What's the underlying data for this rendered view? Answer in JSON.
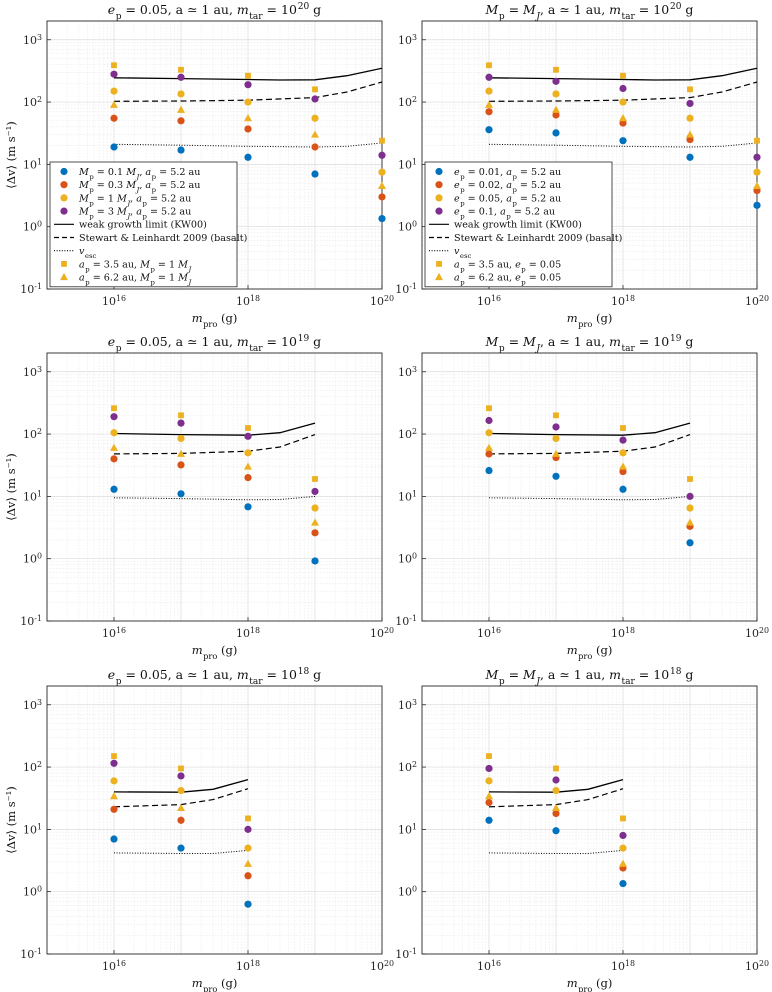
{
  "figure": {
    "xlabel": "m_pro (g)",
    "ylabel": "⟨Δv⟩ (m s⁻¹)",
    "xlim": [
      1000000000000000.0,
      1e+20
    ],
    "ylim": [
      0.1,
      2000
    ],
    "xticks": [
      {
        "v": 1e+16,
        "b": "10",
        "e": "16"
      },
      {
        "v": 1e+18,
        "b": "10",
        "e": "18"
      },
      {
        "v": 1e+20,
        "b": "10",
        "e": "20"
      }
    ],
    "yticks": [
      {
        "v": 0.1,
        "b": "10",
        "e": "-1"
      },
      {
        "v": 1,
        "b": "10",
        "e": "0"
      },
      {
        "v": 10,
        "b": "10",
        "e": "1"
      },
      {
        "v": 100,
        "b": "10",
        "e": "2"
      },
      {
        "v": 1000,
        "b": "10",
        "e": "3"
      }
    ]
  },
  "colors": {
    "blue": "#0072BD",
    "red": "#D95319",
    "yellow": "#EDB120",
    "purple": "#7E2F8E",
    "line": "#000000"
  },
  "legends": {
    "left": [
      {
        "marker": "circle",
        "color": "blue",
        "text": "M_p = 0.1 M_J, a_p = 5.2 au"
      },
      {
        "marker": "circle",
        "color": "red",
        "text": "M_p = 0.3 M_J, a_p = 5.2 au"
      },
      {
        "marker": "circle",
        "color": "yellow",
        "text": "M_p = 1 M_J, a_p = 5.2 au"
      },
      {
        "marker": "circle",
        "color": "purple",
        "text": "M_p = 3 M_J, a_p = 5.2 au"
      },
      {
        "marker": "solid",
        "text": "weak growth limit (KW00)"
      },
      {
        "marker": "dashed",
        "text": "Stewart & Leinhardt 2009 (basalt)"
      },
      {
        "marker": "dotted",
        "text": "v_esc"
      },
      {
        "marker": "square",
        "color": "yellow",
        "text": "a_p = 3.5 au, M_p = 1 M_J"
      },
      {
        "marker": "triangle",
        "color": "yellow",
        "text": "a_p = 6.2 au, M_p = 1 M_J"
      }
    ],
    "right": [
      {
        "marker": "circle",
        "color": "blue",
        "text": "e_p = 0.01, a_p = 5.2 au"
      },
      {
        "marker": "circle",
        "color": "red",
        "text": "e_p = 0.02, a_p = 5.2 au"
      },
      {
        "marker": "circle",
        "color": "yellow",
        "text": "e_p = 0.05, a_p = 5.2 au"
      },
      {
        "marker": "circle",
        "color": "purple",
        "text": "e_p = 0.1, a_p = 5.2 au"
      },
      {
        "marker": "solid",
        "text": "weak growth limit (KW00)"
      },
      {
        "marker": "dashed",
        "text": "Stewart & Leinhardt 2009 (basalt)"
      },
      {
        "marker": "dotted",
        "text": "v_esc"
      },
      {
        "marker": "square",
        "color": "yellow",
        "text": "a_p = 3.5 au, e_p = 0.05"
      },
      {
        "marker": "triangle",
        "color": "yellow",
        "text": "a_p = 6.2 au, e_p = 0.05"
      }
    ]
  },
  "chart_data": [
    {
      "type": "scatter",
      "title": "e_p = 0.05, a ≃ 1 au, m_tar = 10^20 g",
      "x": [
        1e+16,
        1e+17,
        1e+18,
        1e+19,
        1e+20
      ],
      "series": [
        {
          "name": "M_p = 0.1 M_J, a_p = 5.2 au",
          "marker": "circle",
          "color": "blue",
          "values": [
            19,
            17,
            13,
            7,
            1.35
          ]
        },
        {
          "name": "M_p = 0.3 M_J, a_p = 5.2 au",
          "marker": "circle",
          "color": "red",
          "values": [
            55,
            50,
            37,
            19,
            3
          ]
        },
        {
          "name": "M_p = 1 M_J, a_p = 5.2 au",
          "marker": "circle",
          "color": "yellow",
          "values": [
            150,
            135,
            100,
            55,
            7.5
          ]
        },
        {
          "name": "M_p = 3 M_J, a_p = 5.2 au",
          "marker": "circle",
          "color": "purple",
          "values": [
            280,
            250,
            190,
            112,
            14
          ]
        },
        {
          "name": "a_p = 3.5 au, M_p = 1 M_J",
          "marker": "square",
          "color": "yellow",
          "values": [
            390,
            330,
            265,
            160,
            24
          ]
        },
        {
          "name": "a_p = 6.2 au, M_p = 1 M_J",
          "marker": "triangle",
          "color": "yellow",
          "values": [
            90,
            75,
            55,
            30,
            4.5
          ]
        }
      ],
      "lines": [
        {
          "name": "weak growth limit (KW00)",
          "style": "solid",
          "x": [
            1e+16,
            1e+17,
            1e+18,
            3e+18,
            1e+19,
            3e+19,
            1e+20
          ],
          "y": [
            245,
            238,
            230,
            226,
            228,
            265,
            350
          ]
        },
        {
          "name": "Stewart & Leinhardt 2009 (basalt)",
          "style": "dashed",
          "x": [
            1e+16,
            1e+17,
            1e+18,
            1e+19,
            3e+19,
            1e+20
          ],
          "y": [
            103,
            104,
            107,
            118,
            145,
            210
          ]
        },
        {
          "name": "v_esc",
          "style": "dotted",
          "x": [
            1e+16,
            1e+17,
            1e+18,
            1e+19,
            3e+19,
            1e+20
          ],
          "y": [
            21,
            20.3,
            19.5,
            19,
            19.5,
            22
          ]
        }
      ],
      "legend": "left"
    },
    {
      "type": "scatter",
      "title": "M_p = M_J, a ≃ 1 au, m_tar = 10^20 g",
      "x": [
        1e+16,
        1e+17,
        1e+18,
        1e+19,
        1e+20
      ],
      "series": [
        {
          "name": "e_p = 0.01, a_p = 5.2 au",
          "marker": "circle",
          "color": "blue",
          "values": [
            36,
            32,
            24,
            13,
            2.2
          ]
        },
        {
          "name": "e_p = 0.02, a_p = 5.2 au",
          "marker": "circle",
          "color": "red",
          "values": [
            70,
            62,
            46,
            25,
            3.8
          ]
        },
        {
          "name": "e_p = 0.05, a_p = 5.2 au",
          "marker": "circle",
          "color": "yellow",
          "values": [
            150,
            135,
            100,
            55,
            7.5
          ]
        },
        {
          "name": "e_p = 0.1, a_p = 5.2 au",
          "marker": "circle",
          "color": "purple",
          "values": [
            250,
            215,
            165,
            95,
            13
          ]
        },
        {
          "name": "a_p = 3.5 au, e_p = 0.05",
          "marker": "square",
          "color": "yellow",
          "values": [
            390,
            330,
            265,
            160,
            24
          ]
        },
        {
          "name": "a_p = 6.2 au, e_p = 0.05",
          "marker": "triangle",
          "color": "yellow",
          "values": [
            90,
            75,
            55,
            30,
            4.5
          ]
        }
      ],
      "lines": [
        {
          "name": "weak growth limit (KW00)",
          "style": "solid",
          "x": [
            1e+16,
            1e+17,
            1e+18,
            3e+18,
            1e+19,
            3e+19,
            1e+20
          ],
          "y": [
            245,
            238,
            230,
            226,
            228,
            265,
            350
          ]
        },
        {
          "name": "Stewart & Leinhardt 2009 (basalt)",
          "style": "dashed",
          "x": [
            1e+16,
            1e+17,
            1e+18,
            1e+19,
            3e+19,
            1e+20
          ],
          "y": [
            103,
            104,
            107,
            118,
            145,
            210
          ]
        },
        {
          "name": "v_esc",
          "style": "dotted",
          "x": [
            1e+16,
            1e+17,
            1e+18,
            1e+19,
            3e+19,
            1e+20
          ],
          "y": [
            21,
            20.3,
            19.5,
            19,
            19.5,
            22
          ]
        }
      ],
      "legend": "right"
    },
    {
      "type": "scatter",
      "title": "e_p = 0.05, a ≃ 1 au, m_tar = 10^19 g",
      "x": [
        1e+16,
        1e+17,
        1e+18,
        1e+19
      ],
      "series": [
        {
          "name": "M_p = 0.1 M_J, a_p = 5.2 au",
          "marker": "circle",
          "color": "blue",
          "values": [
            13,
            11,
            6.8,
            0.92
          ]
        },
        {
          "name": "M_p = 0.3 M_J, a_p = 5.2 au",
          "marker": "circle",
          "color": "red",
          "values": [
            40,
            32,
            20,
            2.6
          ]
        },
        {
          "name": "M_p = 1 M_J, a_p = 5.2 au",
          "marker": "circle",
          "color": "yellow",
          "values": [
            105,
            85,
            50,
            6.5
          ]
        },
        {
          "name": "M_p = 3 M_J, a_p = 5.2 au",
          "marker": "circle",
          "color": "purple",
          "values": [
            190,
            150,
            92,
            12
          ]
        },
        {
          "name": "a_p = 3.5 au, M_p = 1 M_J",
          "marker": "square",
          "color": "yellow",
          "values": [
            260,
            200,
            125,
            19
          ]
        },
        {
          "name": "a_p = 6.2 au, M_p = 1 M_J",
          "marker": "triangle",
          "color": "yellow",
          "values": [
            60,
            48,
            30,
            3.8
          ]
        }
      ],
      "lines": [
        {
          "name": "weak growth limit (KW00)",
          "style": "solid",
          "x": [
            1e+16,
            1e+17,
            1e+18,
            3e+18,
            1e+19
          ],
          "y": [
            102,
            98,
            96,
            105,
            150
          ]
        },
        {
          "name": "Stewart & Leinhardt 2009 (basalt)",
          "style": "dashed",
          "x": [
            1e+16,
            1e+17,
            1e+18,
            3e+18,
            1e+19
          ],
          "y": [
            48,
            49,
            53,
            62,
            98
          ]
        },
        {
          "name": "v_esc",
          "style": "dotted",
          "x": [
            1e+16,
            1e+17,
            1e+18,
            3e+18,
            1e+19
          ],
          "y": [
            9.5,
            9.2,
            8.8,
            8.9,
            10
          ]
        }
      ]
    },
    {
      "type": "scatter",
      "title": "M_p = M_J, a ≃ 1 au, m_tar = 10^19 g",
      "x": [
        1e+16,
        1e+17,
        1e+18,
        1e+19
      ],
      "series": [
        {
          "name": "e_p = 0.01, a_p = 5.2 au",
          "marker": "circle",
          "color": "blue",
          "values": [
            26,
            21,
            13,
            1.8
          ]
        },
        {
          "name": "e_p = 0.02, a_p = 5.2 au",
          "marker": "circle",
          "color": "red",
          "values": [
            48,
            42,
            25,
            3.3
          ]
        },
        {
          "name": "e_p = 0.05, a_p = 5.2 au",
          "marker": "circle",
          "color": "yellow",
          "values": [
            105,
            85,
            50,
            6.5
          ]
        },
        {
          "name": "e_p = 0.1, a_p = 5.2 au",
          "marker": "circle",
          "color": "purple",
          "values": [
            165,
            130,
            80,
            10
          ]
        },
        {
          "name": "a_p = 3.5 au, e_p = 0.05",
          "marker": "square",
          "color": "yellow",
          "values": [
            260,
            200,
            125,
            19
          ]
        },
        {
          "name": "a_p = 6.2 au, e_p = 0.05",
          "marker": "triangle",
          "color": "yellow",
          "values": [
            60,
            48,
            30,
            3.8
          ]
        }
      ],
      "lines": [
        {
          "name": "weak growth limit (KW00)",
          "style": "solid",
          "x": [
            1e+16,
            1e+17,
            1e+18,
            3e+18,
            1e+19
          ],
          "y": [
            102,
            98,
            96,
            105,
            150
          ]
        },
        {
          "name": "Stewart & Leinhardt 2009 (basalt)",
          "style": "dashed",
          "x": [
            1e+16,
            1e+17,
            1e+18,
            3e+18,
            1e+19
          ],
          "y": [
            48,
            49,
            53,
            62,
            98
          ]
        },
        {
          "name": "v_esc",
          "style": "dotted",
          "x": [
            1e+16,
            1e+17,
            1e+18,
            3e+18,
            1e+19
          ],
          "y": [
            9.5,
            9.2,
            8.8,
            8.9,
            10
          ]
        }
      ]
    },
    {
      "type": "scatter",
      "title": "e_p = 0.05, a ≃ 1 au, m_tar = 10^18 g",
      "x": [
        1e+16,
        1e+17,
        1e+18
      ],
      "series": [
        {
          "name": "M_p = 0.1 M_J, a_p = 5.2 au",
          "marker": "circle",
          "color": "blue",
          "values": [
            7,
            5,
            0.63
          ]
        },
        {
          "name": "M_p = 0.3 M_J, a_p = 5.2 au",
          "marker": "circle",
          "color": "red",
          "values": [
            21,
            14,
            1.8
          ]
        },
        {
          "name": "M_p = 1 M_J, a_p = 5.2 au",
          "marker": "circle",
          "color": "yellow",
          "values": [
            60,
            42,
            5
          ]
        },
        {
          "name": "M_p = 3 M_J, a_p = 5.2 au",
          "marker": "circle",
          "color": "purple",
          "values": [
            115,
            72,
            10
          ]
        },
        {
          "name": "a_p = 3.5 au, M_p = 1 M_J",
          "marker": "square",
          "color": "yellow",
          "values": [
            150,
            95,
            15
          ]
        },
        {
          "name": "a_p = 6.2 au, M_p = 1 M_J",
          "marker": "triangle",
          "color": "yellow",
          "values": [
            34,
            22,
            2.8
          ]
        }
      ],
      "lines": [
        {
          "name": "weak growth limit (KW00)",
          "style": "solid",
          "x": [
            1e+16,
            1e+17,
            3e+17,
            1e+18
          ],
          "y": [
            40,
            39.5,
            44,
            63
          ]
        },
        {
          "name": "Stewart & Leinhardt 2009 (basalt)",
          "style": "dashed",
          "x": [
            1e+16,
            1e+17,
            3e+17,
            1e+18
          ],
          "y": [
            23,
            25,
            30,
            45
          ]
        },
        {
          "name": "v_esc",
          "style": "dotted",
          "x": [
            1e+16,
            1e+17,
            3e+17,
            1e+18
          ],
          "y": [
            4.2,
            4.1,
            4.1,
            4.6
          ]
        }
      ]
    },
    {
      "type": "scatter",
      "title": "M_p = M_J, a ≃ 1 au, m_tar = 10^18 g",
      "x": [
        1e+16,
        1e+17,
        1e+18
      ],
      "series": [
        {
          "name": "e_p = 0.01, a_p = 5.2 au",
          "marker": "circle",
          "color": "blue",
          "values": [
            14,
            9.5,
            1.35
          ]
        },
        {
          "name": "e_p = 0.02, a_p = 5.2 au",
          "marker": "circle",
          "color": "red",
          "values": [
            27,
            18,
            2.4
          ]
        },
        {
          "name": "e_p = 0.05, a_p = 5.2 au",
          "marker": "circle",
          "color": "yellow",
          "values": [
            60,
            42,
            5
          ]
        },
        {
          "name": "e_p = 0.1, a_p = 5.2 au",
          "marker": "circle",
          "color": "purple",
          "values": [
            95,
            62,
            8
          ]
        },
        {
          "name": "a_p = 3.5 au, e_p = 0.05",
          "marker": "square",
          "color": "yellow",
          "values": [
            150,
            95,
            15
          ]
        },
        {
          "name": "a_p = 6.2 au, e_p = 0.05",
          "marker": "triangle",
          "color": "yellow",
          "values": [
            34,
            22,
            2.8
          ]
        }
      ],
      "lines": [
        {
          "name": "weak growth limit (KW00)",
          "style": "solid",
          "x": [
            1e+16,
            1e+17,
            3e+17,
            1e+18
          ],
          "y": [
            40,
            39.5,
            44,
            63
          ]
        },
        {
          "name": "Stewart & Leinhardt 2009 (basalt)",
          "style": "dashed",
          "x": [
            1e+16,
            1e+17,
            3e+17,
            1e+18
          ],
          "y": [
            23,
            25,
            30,
            45
          ]
        },
        {
          "name": "v_esc",
          "style": "dotted",
          "x": [
            1e+16,
            1e+17,
            3e+17,
            1e+18
          ],
          "y": [
            4.2,
            4.1,
            4.1,
            4.6
          ]
        }
      ]
    }
  ]
}
